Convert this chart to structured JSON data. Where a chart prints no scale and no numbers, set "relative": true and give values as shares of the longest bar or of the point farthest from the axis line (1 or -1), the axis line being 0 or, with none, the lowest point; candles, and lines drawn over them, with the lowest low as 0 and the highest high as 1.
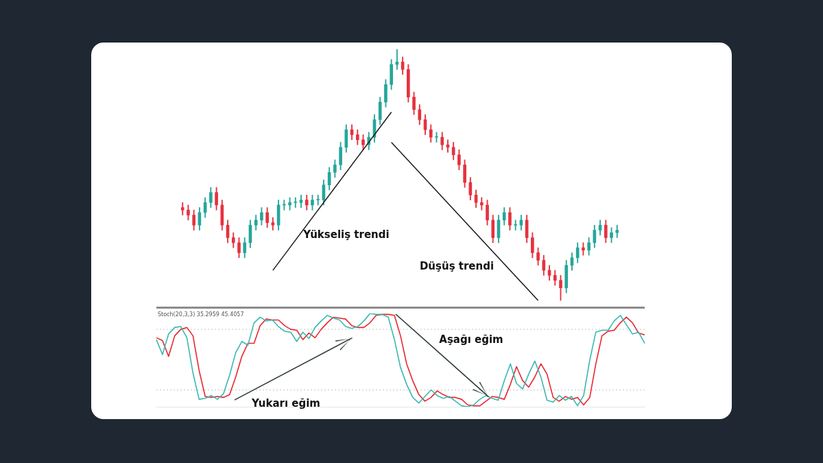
{
  "chart_data": [
    {
      "type": "candlestick",
      "relative": true,
      "categories": [
        null,
        null,
        null,
        null,
        null,
        null,
        null,
        null,
        null,
        null,
        null,
        null,
        null,
        null,
        null,
        null,
        null,
        null,
        null,
        null,
        null,
        null,
        null,
        null,
        null,
        null,
        null,
        null,
        null,
        null,
        null,
        null,
        null,
        null,
        null,
        null,
        null,
        null,
        null,
        null,
        null,
        null,
        null,
        null,
        null,
        null,
        null,
        null,
        null,
        null,
        null,
        null,
        null,
        null,
        null,
        null,
        null,
        null,
        null,
        null,
        null,
        null,
        null,
        null,
        null,
        null,
        null,
        null,
        null,
        null,
        null,
        null,
        null,
        null,
        null,
        null,
        null,
        null
      ],
      "ohlc": [
        [
          0.37,
          0.39,
          0.34,
          0.36
        ],
        [
          0.36,
          0.38,
          0.32,
          0.34
        ],
        [
          0.34,
          0.36,
          0.28,
          0.3
        ],
        [
          0.3,
          0.37,
          0.28,
          0.35
        ],
        [
          0.35,
          0.41,
          0.33,
          0.39
        ],
        [
          0.39,
          0.45,
          0.37,
          0.43
        ],
        [
          0.43,
          0.45,
          0.36,
          0.38
        ],
        [
          0.38,
          0.4,
          0.28,
          0.3
        ],
        [
          0.3,
          0.32,
          0.23,
          0.25
        ],
        [
          0.25,
          0.27,
          0.21,
          0.23
        ],
        [
          0.23,
          0.25,
          0.17,
          0.19
        ],
        [
          0.19,
          0.25,
          0.17,
          0.23
        ],
        [
          0.23,
          0.32,
          0.21,
          0.3
        ],
        [
          0.3,
          0.34,
          0.28,
          0.32
        ],
        [
          0.32,
          0.37,
          0.3,
          0.35
        ],
        [
          0.35,
          0.37,
          0.29,
          0.31
        ],
        [
          0.31,
          0.33,
          0.28,
          0.3
        ],
        [
          0.3,
          0.4,
          0.28,
          0.38
        ],
        [
          0.38,
          0.4,
          0.36,
          0.38
        ],
        [
          0.38,
          0.41,
          0.36,
          0.39
        ],
        [
          0.39,
          0.41,
          0.37,
          0.39
        ],
        [
          0.39,
          0.42,
          0.37,
          0.4
        ],
        [
          0.4,
          0.42,
          0.36,
          0.38
        ],
        [
          0.38,
          0.42,
          0.36,
          0.4
        ],
        [
          0.4,
          0.42,
          0.38,
          0.4
        ],
        [
          0.4,
          0.48,
          0.38,
          0.46
        ],
        [
          0.46,
          0.53,
          0.44,
          0.51
        ],
        [
          0.51,
          0.56,
          0.49,
          0.54
        ],
        [
          0.54,
          0.63,
          0.52,
          0.61
        ],
        [
          0.61,
          0.7,
          0.59,
          0.68
        ],
        [
          0.68,
          0.7,
          0.64,
          0.66
        ],
        [
          0.66,
          0.68,
          0.62,
          0.64
        ],
        [
          0.64,
          0.66,
          0.6,
          0.62
        ],
        [
          0.62,
          0.67,
          0.6,
          0.65
        ],
        [
          0.65,
          0.74,
          0.63,
          0.72
        ],
        [
          0.72,
          0.81,
          0.7,
          0.79
        ],
        [
          0.79,
          0.88,
          0.77,
          0.86
        ],
        [
          0.86,
          0.96,
          0.84,
          0.94
        ],
        [
          0.94,
          1,
          0.92,
          0.95
        ],
        [
          0.95,
          0.97,
          0.9,
          0.92
        ],
        [
          0.92,
          0.94,
          0.79,
          0.81
        ],
        [
          0.81,
          0.83,
          0.74,
          0.76
        ],
        [
          0.76,
          0.78,
          0.7,
          0.72
        ],
        [
          0.72,
          0.74,
          0.66,
          0.68
        ],
        [
          0.68,
          0.7,
          0.63,
          0.65
        ],
        [
          0.65,
          0.67,
          0.63,
          0.65
        ],
        [
          0.65,
          0.67,
          0.6,
          0.62
        ],
        [
          0.62,
          0.64,
          0.59,
          0.61
        ],
        [
          0.61,
          0.63,
          0.56,
          0.58
        ],
        [
          0.58,
          0.6,
          0.52,
          0.54
        ],
        [
          0.54,
          0.56,
          0.45,
          0.47
        ],
        [
          0.47,
          0.49,
          0.4,
          0.42
        ],
        [
          0.42,
          0.44,
          0.37,
          0.39
        ],
        [
          0.39,
          0.41,
          0.36,
          0.38
        ],
        [
          0.38,
          0.4,
          0.3,
          0.32
        ],
        [
          0.32,
          0.34,
          0.23,
          0.25
        ],
        [
          0.25,
          0.34,
          0.23,
          0.32
        ],
        [
          0.32,
          0.37,
          0.3,
          0.35
        ],
        [
          0.35,
          0.37,
          0.28,
          0.3
        ],
        [
          0.3,
          0.32,
          0.28,
          0.3
        ],
        [
          0.3,
          0.34,
          0.28,
          0.32
        ],
        [
          0.32,
          0.34,
          0.23,
          0.25
        ],
        [
          0.25,
          0.27,
          0.17,
          0.19
        ],
        [
          0.19,
          0.21,
          0.14,
          0.16
        ],
        [
          0.16,
          0.18,
          0.1,
          0.12
        ],
        [
          0.12,
          0.14,
          0.08,
          0.1
        ],
        [
          0.1,
          0.12,
          0.06,
          0.08
        ],
        [
          0.08,
          0.1,
          0,
          0.05
        ],
        [
          0.05,
          0.16,
          0.03,
          0.14
        ],
        [
          0.14,
          0.19,
          0.12,
          0.17
        ],
        [
          0.17,
          0.23,
          0.15,
          0.21
        ],
        [
          0.21,
          0.23,
          0.18,
          0.2
        ],
        [
          0.2,
          0.25,
          0.18,
          0.23
        ],
        [
          0.23,
          0.3,
          0.21,
          0.28
        ],
        [
          0.28,
          0.32,
          0.26,
          0.3
        ],
        [
          0.3,
          0.32,
          0.23,
          0.25
        ],
        [
          0.25,
          0.29,
          0.23,
          0.27
        ],
        [
          0.27,
          0.3,
          0.25,
          0.28
        ]
      ],
      "colors": [
        "#e5323e",
        "#e5323e",
        "#e5323e",
        "#26a69a",
        "#26a69a",
        "#26a69a",
        "#e5323e",
        "#e5323e",
        "#e5323e",
        "#e5323e",
        "#e5323e",
        "#26a69a",
        "#26a69a",
        "#26a69a",
        "#26a69a",
        "#e5323e",
        "#e5323e",
        "#26a69a",
        "#26a69a",
        "#26a69a",
        "#26a69a",
        "#26a69a",
        "#e5323e",
        "#26a69a",
        "#26a69a",
        "#26a69a",
        "#26a69a",
        "#26a69a",
        "#26a69a",
        "#26a69a",
        "#e5323e",
        "#e5323e",
        "#e5323e",
        "#26a69a",
        "#26a69a",
        "#26a69a",
        "#26a69a",
        "#26a69a",
        "#26a69a",
        "#e5323e",
        "#e5323e",
        "#e5323e",
        "#e5323e",
        "#e5323e",
        "#e5323e",
        "#26a69a",
        "#e5323e",
        "#e5323e",
        "#e5323e",
        "#e5323e",
        "#e5323e",
        "#e5323e",
        "#e5323e",
        "#e5323e",
        "#e5323e",
        "#e5323e",
        "#26a69a",
        "#26a69a",
        "#e5323e",
        "#26a69a",
        "#26a69a",
        "#e5323e",
        "#e5323e",
        "#e5323e",
        "#e5323e",
        "#e5323e",
        "#e5323e",
        "#e5323e",
        "#26a69a",
        "#26a69a",
        "#26a69a",
        "#e5323e",
        "#26a69a",
        "#26a69a",
        "#26a69a",
        "#e5323e",
        "#26a69a",
        "#26a69a"
      ],
      "series": [
        {
          "type": "line",
          "values": [
            null,
            null,
            null,
            null,
            null,
            null,
            null,
            null,
            null,
            null,
            null,
            null,
            null,
            null,
            null,
            null,
            0.12,
            null,
            null,
            null,
            null,
            null,
            null,
            null,
            null,
            null,
            null,
            null,
            null,
            null,
            null,
            null,
            null,
            null,
            null,
            null,
            null,
            0.75,
            null,
            null,
            null,
            null,
            null,
            null,
            null,
            null,
            null,
            null,
            null,
            null,
            null,
            null,
            null,
            null,
            null,
            null,
            null,
            null,
            null,
            null,
            null,
            null,
            null,
            null,
            null,
            null,
            null,
            null,
            null,
            null,
            null,
            null,
            null,
            null,
            null,
            null,
            null,
            null
          ],
          "color": "#1a1a1a"
        },
        {
          "type": "line",
          "values": [
            null,
            null,
            null,
            null,
            null,
            null,
            null,
            null,
            null,
            null,
            null,
            null,
            null,
            null,
            null,
            null,
            null,
            null,
            null,
            null,
            null,
            null,
            null,
            null,
            null,
            null,
            null,
            null,
            null,
            null,
            null,
            null,
            null,
            null,
            null,
            null,
            null,
            0.63,
            null,
            null,
            null,
            null,
            null,
            null,
            null,
            null,
            null,
            null,
            null,
            null,
            null,
            null,
            null,
            null,
            null,
            null,
            null,
            null,
            null,
            null,
            null,
            null,
            null,
            0,
            null,
            null,
            null,
            null,
            null,
            null,
            null,
            null,
            null,
            null,
            null,
            null,
            null,
            null
          ],
          "color": "#1a1a1a"
        }
      ],
      "annotations": [
        "Yükseliş trendi",
        "Düşüş trendi"
      ]
    },
    {
      "type": "line",
      "relative": true,
      "line_style": "solid",
      "categories": [
        null,
        null,
        null,
        null,
        null,
        null,
        null,
        null,
        null,
        null,
        null,
        null,
        null,
        null,
        null,
        null,
        null,
        null,
        null,
        null,
        null,
        null,
        null,
        null,
        null,
        null,
        null,
        null,
        null,
        null,
        null,
        null,
        null,
        null,
        null,
        null,
        null,
        null,
        null,
        null,
        null,
        null,
        null,
        null,
        null,
        null,
        null,
        null,
        null,
        null,
        null,
        null,
        null,
        null,
        null,
        null,
        null,
        null,
        null,
        null,
        null,
        null,
        null,
        null,
        null,
        null,
        null,
        null,
        null,
        null,
        null,
        null,
        null,
        null,
        null,
        null,
        null,
        null,
        null,
        null,
        null
      ],
      "series": [
        {
          "color": "#3bb8b0",
          "values": [
            0.72,
            0.56,
            0.78,
            0.85,
            0.86,
            0.74,
            0.36,
            0.08,
            0.09,
            0.12,
            0.08,
            0.14,
            0.34,
            0.58,
            0.7,
            0.66,
            0.9,
            0.96,
            0.92,
            0.93,
            0.86,
            0.81,
            0.8,
            0.7,
            0.8,
            0.73,
            0.85,
            0.92,
            0.98,
            0.95,
            0.93,
            0.86,
            0.84,
            0.86,
            0.92,
            1,
            0.99,
            0.99,
            0.96,
            0.72,
            0.42,
            0.24,
            0.1,
            0.04,
            0.11,
            0.18,
            0.12,
            0.09,
            0.11,
            0.06,
            0.01,
            0,
            0.02,
            0.08,
            0.12,
            0.09,
            0.07,
            0.28,
            0.46,
            0.25,
            0.19,
            0.35,
            0.49,
            0.32,
            0.07,
            0.05,
            0.12,
            0.07,
            0.11,
            0.01,
            0.12,
            0.5,
            0.8,
            0.82,
            0.82,
            0.92,
            0.98,
            0.88,
            0.78,
            0.8,
            0.68
          ]
        },
        {
          "color": "#e8262e",
          "values": [
            0.74,
            0.71,
            0.54,
            0.76,
            0.83,
            0.85,
            0.76,
            0.39,
            0.11,
            0.1,
            0.11,
            0.1,
            0.13,
            0.32,
            0.54,
            0.68,
            0.68,
            0.87,
            0.94,
            0.93,
            0.93,
            0.87,
            0.83,
            0.82,
            0.72,
            0.79,
            0.74,
            0.83,
            0.9,
            0.96,
            0.95,
            0.94,
            0.87,
            0.85,
            0.85,
            0.9,
            0.98,
            0.99,
            0.99,
            0.98,
            0.76,
            0.46,
            0.28,
            0.13,
            0.06,
            0.1,
            0.17,
            0.13,
            0.1,
            0.1,
            0.08,
            0.02,
            0.01,
            0.01,
            0.06,
            0.11,
            0.1,
            0.08,
            0.24,
            0.43,
            0.28,
            0.21,
            0.32,
            0.46,
            0.35,
            0.1,
            0.06,
            0.11,
            0.08,
            0.1,
            0.02,
            0.1,
            0.46,
            0.76,
            0.81,
            0.82,
            0.9,
            0.96,
            0.9,
            0.79,
            0.77
          ]
        }
      ],
      "ref_lines": [
        {
          "axis": "y",
          "value": 0.83,
          "color": "#c8c8c8",
          "line_style": "dotted"
        },
        {
          "axis": "y",
          "value": 0.18,
          "color": "#c8c8c8",
          "line_style": "dotted"
        }
      ],
      "annotations": [
        "Stoch(20,3,3) 35.2959 45.4057",
        "Yukarı eğim",
        "Aşağı eğim"
      ]
    }
  ]
}
